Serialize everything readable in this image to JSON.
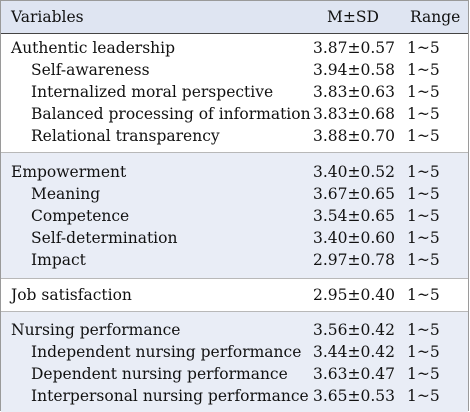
{
  "header": {
    "variables": "Variables",
    "msd": "M±SD",
    "range": "Range"
  },
  "sections": [
    {
      "title": "Authentic leadership",
      "msd": "3.87±0.57",
      "range": "1~5",
      "items": [
        {
          "label": "Self-awareness",
          "msd": "3.94±0.58",
          "range": "1~5"
        },
        {
          "label": "Internalized moral perspective",
          "msd": "3.83±0.63",
          "range": "1~5"
        },
        {
          "label": "Balanced processing of information",
          "msd": "3.83±0.68",
          "range": "1~5"
        },
        {
          "label": "Relational transparency",
          "msd": "3.88±0.70",
          "range": "1~5"
        }
      ]
    },
    {
      "title": "Empowerment",
      "msd": "3.40±0.52",
      "range": "1~5",
      "items": [
        {
          "label": "Meaning",
          "msd": "3.67±0.65",
          "range": "1~5"
        },
        {
          "label": "Competence",
          "msd": "3.54±0.65",
          "range": "1~5"
        },
        {
          "label": "Self-determination",
          "msd": "3.40±0.60",
          "range": "1~5"
        },
        {
          "label": "Impact",
          "msd": "2.97±0.78",
          "range": "1~5"
        }
      ]
    },
    {
      "title": "Job satisfaction",
      "msd": "2.95±0.40",
      "range": "1~5",
      "items": []
    },
    {
      "title": "Nursing performance",
      "msd": "3.56±0.42",
      "range": "1~5",
      "items": [
        {
          "label": "Independent nursing performance",
          "msd": "3.44±0.42",
          "range": "1~5"
        },
        {
          "label": "Dependent nursing performance",
          "msd": "3.63±0.47",
          "range": "1~5"
        },
        {
          "label": "Interpersonal nursing performance",
          "msd": "3.65±0.53",
          "range": "1~5"
        }
      ]
    }
  ]
}
